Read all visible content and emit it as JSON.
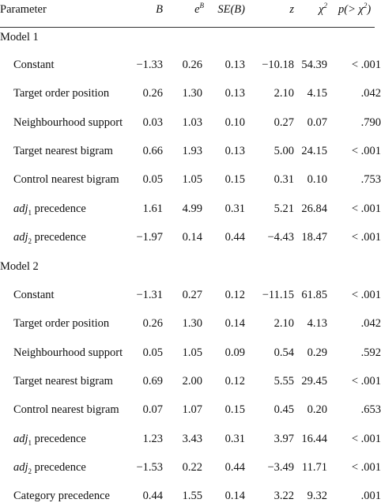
{
  "header": {
    "parameter": "Parameter",
    "b": "B",
    "eb_base": "e",
    "eb_sup": "B",
    "se": "SE(B)",
    "z": "z",
    "chi_base": "χ",
    "chi_sup": "2",
    "p": "p(> χ",
    "p_sup": "2",
    "p_close": ")"
  },
  "models": [
    {
      "label": "Model 1",
      "rows": [
        {
          "param": "Constant",
          "b": "−1.33",
          "eb": "0.26",
          "se": "0.13",
          "z": "−10.18",
          "chi": "54.39",
          "p": "< .001"
        },
        {
          "param": "Target order position",
          "b": "0.26",
          "eb": "1.30",
          "se": "0.13",
          "z": "2.10",
          "chi": "4.15",
          "p": ".042"
        },
        {
          "param": "Neighbourhood support",
          "b": "0.03",
          "eb": "1.03",
          "se": "0.10",
          "z": "0.27",
          "chi": "0.07",
          "p": ".790"
        },
        {
          "param": "Target nearest bigram",
          "b": "0.66",
          "eb": "1.93",
          "se": "0.13",
          "z": "5.00",
          "chi": "24.15",
          "p": "< .001"
        },
        {
          "param": "Control nearest bigram",
          "b": "0.05",
          "eb": "1.05",
          "se": "0.15",
          "z": "0.31",
          "chi": "0.10",
          "p": ".753"
        },
        {
          "param_adj": "adj",
          "param_sub": "1",
          "param_rest": " precedence",
          "b": "1.61",
          "eb": "4.99",
          "se": "0.31",
          "z": "5.21",
          "chi": "26.84",
          "p": "< .001"
        },
        {
          "param_adj": "adj",
          "param_sub": "2",
          "param_rest": " precedence",
          "b": "−1.97",
          "eb": "0.14",
          "se": "0.44",
          "z": "−4.43",
          "chi": "18.47",
          "p": "< .001"
        }
      ]
    },
    {
      "label": "Model 2",
      "rows": [
        {
          "param": "Constant",
          "b": "−1.31",
          "eb": "0.27",
          "se": "0.12",
          "z": "−11.15",
          "chi": "61.85",
          "p": "< .001"
        },
        {
          "param": "Target order position",
          "b": "0.26",
          "eb": "1.30",
          "se": "0.14",
          "z": "2.10",
          "chi": "4.13",
          "p": ".042"
        },
        {
          "param": "Neighbourhood support",
          "b": "0.05",
          "eb": "1.05",
          "se": "0.09",
          "z": "0.54",
          "chi": "0.29",
          "p": ".592"
        },
        {
          "param": "Target nearest bigram",
          "b": "0.69",
          "eb": "2.00",
          "se": "0.12",
          "z": "5.55",
          "chi": "29.45",
          "p": "< .001"
        },
        {
          "param": "Control nearest bigram",
          "b": "0.07",
          "eb": "1.07",
          "se": "0.15",
          "z": "0.45",
          "chi": "0.20",
          "p": ".653"
        },
        {
          "param_adj": "adj",
          "param_sub": "1",
          "param_rest": " precedence",
          "b": "1.23",
          "eb": "3.43",
          "se": "0.31",
          "z": "3.97",
          "chi": "16.44",
          "p": "< .001"
        },
        {
          "param_adj": "adj",
          "param_sub": "2",
          "param_rest": " precedence",
          "b": "−1.53",
          "eb": "0.22",
          "se": "0.44",
          "z": "−3.49",
          "chi": "11.71",
          "p": "< .001"
        },
        {
          "param": "Category precedence",
          "b": "0.44",
          "eb": "1.55",
          "se": "0.14",
          "z": "3.22",
          "chi": "9.32",
          "p": ".001"
        }
      ]
    }
  ]
}
